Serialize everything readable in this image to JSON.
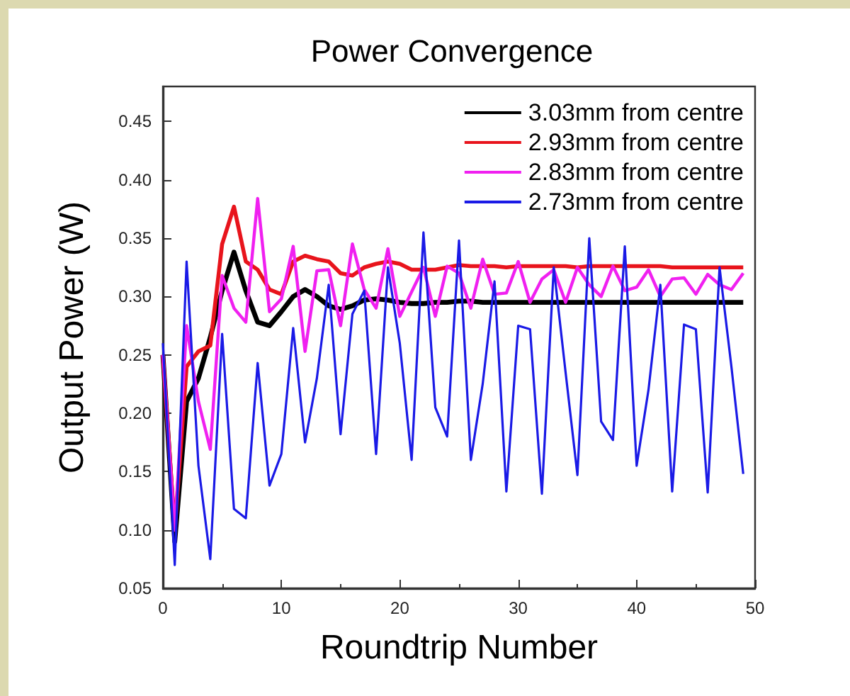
{
  "chart_data": {
    "type": "line",
    "title": "Power Convergence",
    "xlabel": "Roundtrip Number",
    "ylabel": "Output Power (W)",
    "x": [
      0,
      1,
      2,
      3,
      4,
      5,
      6,
      7,
      8,
      9,
      10,
      11,
      12,
      13,
      14,
      15,
      16,
      17,
      18,
      19,
      20,
      21,
      22,
      23,
      24,
      25,
      26,
      27,
      28,
      29,
      30,
      31,
      32,
      33,
      34,
      35,
      36,
      37,
      38,
      39,
      40,
      41,
      42,
      43,
      44,
      45,
      46,
      47,
      48,
      49
    ],
    "series": [
      {
        "name": "3.03mm from centre",
        "color": "#000000",
        "values": [
          0.25,
          0.09,
          0.21,
          0.23,
          0.265,
          0.305,
          0.338,
          0.305,
          0.278,
          0.275,
          0.287,
          0.3,
          0.306,
          0.3,
          0.292,
          0.289,
          0.292,
          0.297,
          0.298,
          0.297,
          0.295,
          0.294,
          0.294,
          0.295,
          0.295,
          0.296,
          0.296,
          0.295,
          0.295,
          0.295,
          0.295,
          0.295,
          0.295,
          0.295,
          0.295,
          0.295,
          0.295,
          0.295,
          0.295,
          0.295,
          0.295,
          0.295,
          0.295,
          0.295,
          0.295,
          0.295,
          0.295,
          0.295,
          0.295,
          0.295
        ]
      },
      {
        "name": "2.93mm from centre",
        "color": "#e8141c",
        "values": [
          0.25,
          0.1,
          0.24,
          0.253,
          0.258,
          0.345,
          0.377,
          0.33,
          0.323,
          0.306,
          0.302,
          0.33,
          0.335,
          0.332,
          0.33,
          0.32,
          0.318,
          0.325,
          0.328,
          0.33,
          0.328,
          0.323,
          0.323,
          0.323,
          0.325,
          0.327,
          0.326,
          0.326,
          0.326,
          0.325,
          0.326,
          0.326,
          0.326,
          0.326,
          0.326,
          0.325,
          0.326,
          0.326,
          0.326,
          0.326,
          0.326,
          0.326,
          0.326,
          0.325,
          0.325,
          0.325,
          0.325,
          0.325,
          0.325,
          0.325
        ]
      },
      {
        "name": "2.83mm from centre",
        "color": "#f020f0",
        "values": [
          0.25,
          0.1,
          0.275,
          0.21,
          0.169,
          0.318,
          0.29,
          0.278,
          0.384,
          0.287,
          0.298,
          0.343,
          0.253,
          0.322,
          0.323,
          0.275,
          0.345,
          0.306,
          0.29,
          0.341,
          0.283,
          0.304,
          0.325,
          0.283,
          0.326,
          0.32,
          0.29,
          0.332,
          0.302,
          0.303,
          0.33,
          0.295,
          0.315,
          0.323,
          0.295,
          0.325,
          0.31,
          0.3,
          0.326,
          0.305,
          0.308,
          0.323,
          0.3,
          0.315,
          0.316,
          0.302,
          0.319,
          0.31,
          0.306,
          0.32
        ]
      },
      {
        "name": "2.73mm from centre",
        "color": "#1a1ae6",
        "values": [
          0.26,
          0.07,
          0.33,
          0.155,
          0.075,
          0.268,
          0.118,
          0.11,
          0.243,
          0.138,
          0.165,
          0.273,
          0.175,
          0.23,
          0.31,
          0.182,
          0.285,
          0.305,
          0.165,
          0.325,
          0.26,
          0.16,
          0.355,
          0.205,
          0.18,
          0.348,
          0.16,
          0.225,
          0.313,
          0.133,
          0.275,
          0.272,
          0.131,
          0.325,
          0.235,
          0.147,
          0.35,
          0.193,
          0.177,
          0.343,
          0.155,
          0.22,
          0.31,
          0.133,
          0.276,
          0.272,
          0.132,
          0.325,
          0.24,
          0.148
        ]
      }
    ],
    "xlim": [
      0,
      50
    ],
    "xticks": [
      0,
      10,
      20,
      30,
      40,
      50
    ],
    "ylim": [
      0.05,
      0.48
    ],
    "yticks": [
      {
        "value": 0.05,
        "label": "0.05"
      },
      {
        "value": 0.1,
        "label": "0.10"
      },
      {
        "value": 0.15,
        "label": "0.15"
      },
      {
        "value": 0.2,
        "label": "0.20"
      },
      {
        "value": 0.25,
        "label": "0.25"
      },
      {
        "value": 0.3,
        "label": "0.30"
      },
      {
        "value": 0.35,
        "label": "0.35"
      },
      {
        "value": 0.4,
        "label": "0.40"
      },
      {
        "value": 0.45,
        "label": "0.45"
      }
    ],
    "legend": "top right",
    "grid": false,
    "marker": "none",
    "line_style": "solid"
  }
}
